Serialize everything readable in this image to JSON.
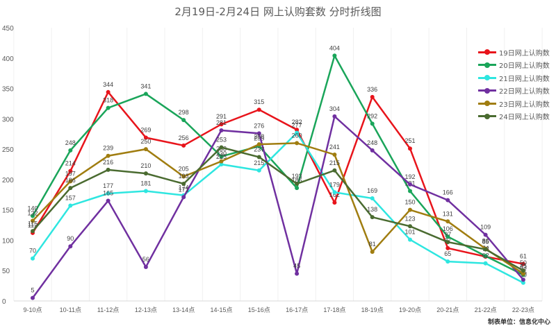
{
  "title": "2月19日-2月24日 网上认购套数 分时折线图",
  "footer": "制表单位：信息化中心",
  "chart_data": {
    "type": "line",
    "title": "2月19日-2月24日 网上认购套数 分时折线图",
    "xlabel": "",
    "ylabel": "",
    "ylim": [
      0,
      450
    ],
    "yticks": [
      0,
      50,
      100,
      150,
      200,
      250,
      300,
      350,
      400,
      450
    ],
    "grid": "vertical",
    "legend_position": "right",
    "categories": [
      "9-10点",
      "10-11点",
      "11-12点",
      "12-13点",
      "13-14点",
      "14-15点",
      "15-16点",
      "16-17点",
      "17-18点",
      "18-19点",
      "19-20点",
      "20-21点",
      "21-22点",
      "22-23点"
    ],
    "series": [
      {
        "name": "19日网上认购数",
        "color": "#e8141b",
        "values": [
          112,
          214,
          344,
          269,
          256,
          291,
          315,
          282,
          162,
          336,
          251,
          87,
          73,
          61
        ]
      },
      {
        "name": "20日网上认购数",
        "color": "#1aa55a",
        "values": [
          140,
          248,
          318,
          341,
          298,
          238,
          255,
          186,
          404,
          292,
          181,
          106,
          74,
          43
        ]
      },
      {
        "name": "21日网上认购数",
        "color": "#2ee6e0",
        "values": [
          70,
          157,
          177,
          181,
          174,
          225,
          215,
          277,
          179,
          169,
          101,
          65,
          62,
          30
        ]
      },
      {
        "name": "22日网上认购数",
        "color": "#7030a0",
        "values": [
          5,
          90,
          165,
          56,
          171,
          281,
          276,
          45,
          304,
          248,
          192,
          166,
          109,
          35
        ]
      },
      {
        "name": "23日网上认购数",
        "color": "#a07d10",
        "values": [
          132,
          197,
          239,
          250,
          205,
          230,
          258,
          260,
          241,
          81,
          150,
          131,
          86,
          45
        ]
      },
      {
        "name": "24日网上认购数",
        "color": "#4a6b30",
        "values": [
          115,
          186,
          216,
          210,
          193,
          253,
          237,
          193,
          215,
          138,
          123,
          97,
          85,
          50
        ]
      }
    ]
  }
}
